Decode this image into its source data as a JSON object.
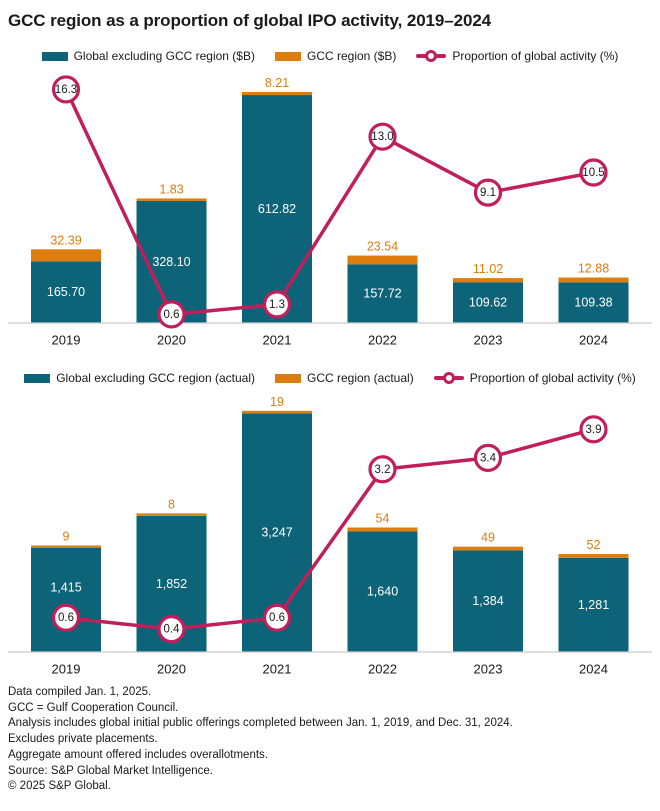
{
  "title": "GCC region as a proportion of global IPO activity, 2019–2024",
  "colors": {
    "teal": "#0D6378",
    "orange": "#DC7D0E",
    "magenta": "#C01F5B",
    "axis_line": "#C9C9C9",
    "text": "#1A1A1A",
    "bar_label_text": "#FFFFFF"
  },
  "chart_data": [
    {
      "type": "bar",
      "subtype": "stacked-bar-with-line-overlay",
      "title": "",
      "categories": [
        "2019",
        "2020",
        "2021",
        "2022",
        "2023",
        "2024"
      ],
      "grid": false,
      "legend_position": "top-center",
      "bar_ylim": [
        0,
        650
      ],
      "line_ylim": [
        0,
        18
      ],
      "series": [
        {
          "name": "Global excluding GCC region ($B)",
          "role": "bar-base",
          "color_key": "teal",
          "values": [
            165.7,
            328.1,
            612.82,
            157.72,
            109.62,
            109.38
          ],
          "labels": [
            "165.70",
            "328.10",
            "612.82",
            "157.72",
            "109.62",
            "109.38"
          ]
        },
        {
          "name": "GCC region ($B)",
          "role": "bar-stack-top",
          "color_key": "orange",
          "values": [
            32.39,
            1.83,
            8.21,
            23.54,
            11.02,
            12.88
          ],
          "labels": [
            "32.39",
            "1.83",
            "8.21",
            "23.54",
            "11.02",
            "12.88"
          ]
        },
        {
          "name": "Proportion of global activity (%)",
          "role": "line",
          "color_key": "magenta",
          "values": [
            16.3,
            0.6,
            1.3,
            13.0,
            9.1,
            10.5
          ],
          "labels": [
            "16.3",
            "0.6",
            "1.3",
            "13.0",
            "9.1",
            "10.5"
          ]
        }
      ]
    },
    {
      "type": "bar",
      "subtype": "stacked-bar-with-line-overlay",
      "title": "",
      "categories": [
        "2019",
        "2020",
        "2021",
        "2022",
        "2023",
        "2024"
      ],
      "grid": false,
      "legend_position": "top-center",
      "bar_ylim": [
        0,
        3500
      ],
      "line_ylim": [
        0,
        4.6
      ],
      "series": [
        {
          "name": "Global excluding GCC region (actual)",
          "role": "bar-base",
          "color_key": "teal",
          "values": [
            1415,
            1852,
            3247,
            1640,
            1384,
            1281
          ],
          "labels": [
            "1,415",
            "1,852",
            "3,247",
            "1,640",
            "1,384",
            "1,281"
          ]
        },
        {
          "name": "GCC region (actual)",
          "role": "bar-stack-top",
          "color_key": "orange",
          "values": [
            9,
            8,
            19,
            54,
            49,
            52
          ],
          "labels": [
            "9",
            "8",
            "19",
            "54",
            "49",
            "52"
          ]
        },
        {
          "name": "Proportion of global activity (%)",
          "role": "line",
          "color_key": "magenta",
          "values": [
            0.6,
            0.4,
            0.6,
            3.2,
            3.4,
            3.9
          ],
          "labels": [
            "0.6",
            "0.4",
            "0.6",
            "3.2",
            "3.4",
            "3.9"
          ]
        }
      ]
    }
  ],
  "footnotes": [
    "Data compiled Jan. 1, 2025.",
    "GCC = Gulf Cooperation Council.",
    "Analysis includes global initial public offerings completed between Jan. 1, 2019, and Dec. 31, 2024.",
    "Excludes private placements.",
    "Aggregate amount offered includes overallotments.",
    "Source: S&P Global Market Intelligence.",
    "© 2025 S&P Global."
  ]
}
